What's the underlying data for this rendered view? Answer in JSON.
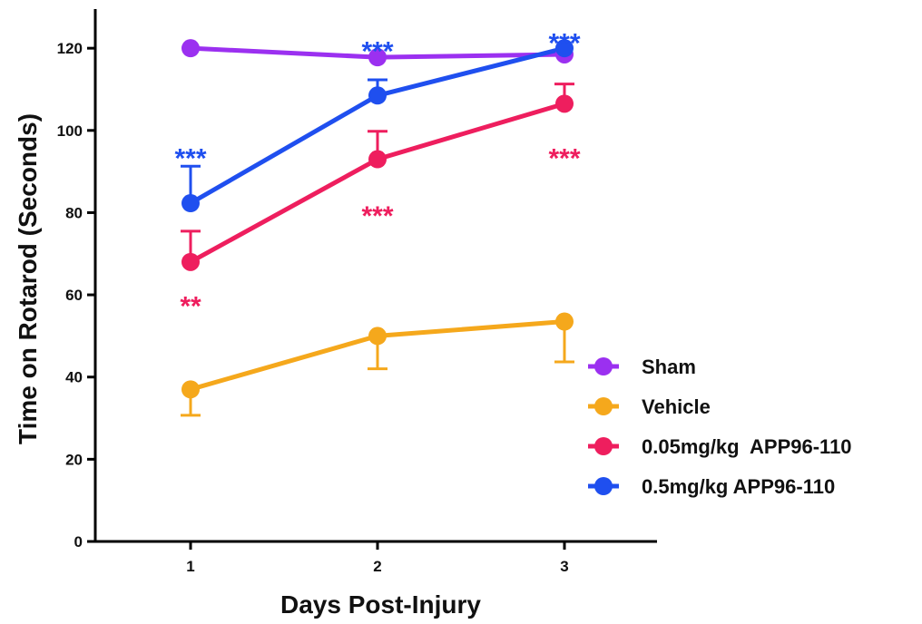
{
  "chart_data": {
    "type": "line",
    "xlabel": "Days Post-Injury",
    "ylabel": "Time on Rotarod (Seconds)",
    "x": [
      1,
      2,
      3
    ],
    "ylim": [
      0,
      130
    ],
    "yticks": [
      0,
      20,
      40,
      60,
      80,
      100,
      120
    ],
    "grid": false,
    "legend": "bottom-right",
    "series": [
      {
        "name": "Sham",
        "color": "#9B30F0",
        "values": [
          120,
          117.8,
          118.5
        ],
        "error_up": [
          0,
          0,
          0
        ],
        "error_down": [
          0,
          0,
          0
        ]
      },
      {
        "name": "Vehicle",
        "color": "#F5A81C",
        "values": [
          37,
          50,
          53.5
        ],
        "error_up": [
          0,
          0,
          0
        ],
        "error_down": [
          6.3,
          8,
          9.8
        ]
      },
      {
        "name": "0.05mg/kg  APP96-110",
        "color": "#EE1E5E",
        "values": [
          68,
          93,
          106.5
        ],
        "error_up": [
          7.5,
          6.8,
          4.8
        ],
        "error_down": [
          0,
          0,
          0
        ]
      },
      {
        "name": "0.5mg/kg APP96-110",
        "color": "#1F4FEF",
        "values": [
          82.3,
          108.5,
          120
        ],
        "error_up": [
          9,
          3.8,
          0
        ],
        "error_down": [
          0,
          0,
          0
        ]
      }
    ],
    "annotations": [
      {
        "text": "***",
        "series": "0.5mg/kg APP96-110",
        "x": 1,
        "y": 95
      },
      {
        "text": "**",
        "series": "0.05mg/kg  APP96-110",
        "x": 1,
        "y": 59
      },
      {
        "text": "***",
        "series": "0.5mg/kg APP96-110",
        "x": 2,
        "y": 121
      },
      {
        "text": "***",
        "series": "0.05mg/kg  APP96-110",
        "x": 2,
        "y": 81
      },
      {
        "text": "***",
        "series": "0.5mg/kg APP96-110",
        "x": 3,
        "y": 123
      },
      {
        "text": "***",
        "series": "0.05mg/kg  APP96-110",
        "x": 3,
        "y": 95
      }
    ]
  }
}
